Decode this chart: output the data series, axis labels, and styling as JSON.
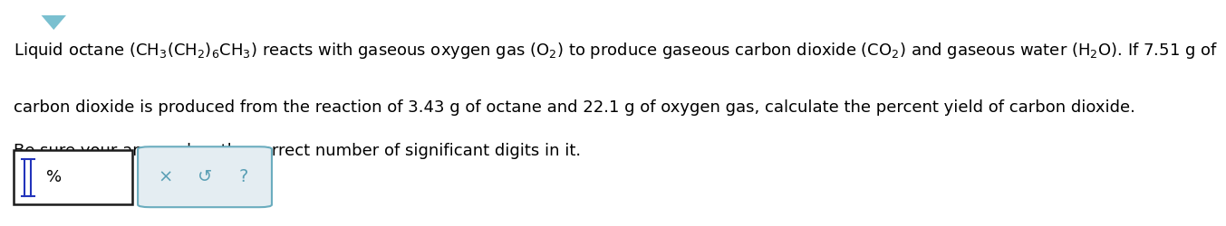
{
  "line1": "Liquid octane $\\left(\\mathrm{CH_3(CH_2)_6CH_3}\\right)$ reacts with gaseous oxygen gas $\\left(\\mathrm{O_2}\\right)$ to produce gaseous carbon dioxide $\\left(\\mathrm{CO_2}\\right)$ and gaseous water $\\left(\\mathrm{H_2O}\\right)$. If 7.51 g of",
  "line2": "carbon dioxide is produced from the reaction of 3.43 g of octane and 22.1 g of oxygen gas, calculate the percent yield of carbon dioxide.",
  "line3": "Be sure your answer has the correct number of significant digits in it.",
  "percent_label": "%",
  "button_labels": [
    "×",
    "↺",
    "?"
  ],
  "bg_color": "#ffffff",
  "text_color": "#000000",
  "font_size": 13.0,
  "input_border_color": "#1a1a1a",
  "button_bg_color": "#e4edf2",
  "button_border_color": "#6aacbe",
  "icon_color": "#5a9fb5",
  "blue_icon_color": "#2233bb",
  "nav_arrow_color": "#7ac0d0"
}
